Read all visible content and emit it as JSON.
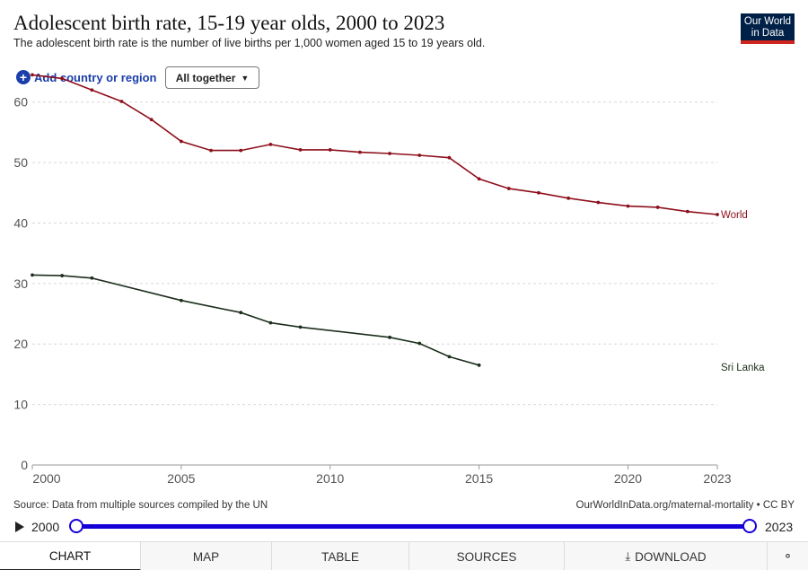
{
  "header": {
    "title": "Adolescent birth rate, 15-19 year olds, 2000 to 2023",
    "subtitle": "The adolescent birth rate is the number of live births per 1,000 women aged 15 to 19 years old."
  },
  "logo": {
    "line1": "Our World",
    "line2": "in Data"
  },
  "controls": {
    "add_label": "Add country or region",
    "dropdown_value": "All together"
  },
  "chart_data": {
    "type": "line",
    "title": "Adolescent birth rate, 15-19 year olds, 2000 to 2023",
    "xlim": [
      2000,
      2023
    ],
    "ylim": [
      0,
      65
    ],
    "x_ticks": [
      "2000",
      "2005",
      "2010",
      "2015",
      "2020",
      "2023"
    ],
    "y_ticks": [
      "0",
      "10",
      "20",
      "30",
      "40",
      "50",
      "60"
    ],
    "grid": true,
    "series": [
      {
        "name": "World",
        "color": "#8e0f1b",
        "x": [
          2000,
          2001,
          2002,
          2003,
          2004,
          2005,
          2006,
          2007,
          2008,
          2009,
          2010,
          2011,
          2012,
          2013,
          2014,
          2015,
          2016,
          2017,
          2018,
          2019,
          2020,
          2021,
          2022,
          2023
        ],
        "values": [
          64.5,
          63.9,
          62,
          60.1,
          57.1,
          53.5,
          52,
          52,
          53,
          52.1,
          52.1,
          51.7,
          51.5,
          51.2,
          50.8,
          47.3,
          45.7,
          45,
          44.1,
          43.4,
          42.8,
          42.6,
          41.9,
          41.4
        ]
      },
      {
        "name": "Sri Lanka",
        "color": "#1c2e1c",
        "x": [
          2000,
          2001,
          2002,
          2005,
          2007,
          2008,
          2009,
          2012,
          2013,
          2014,
          2015
        ],
        "values": [
          31.4,
          31.3,
          30.9,
          27.2,
          25.2,
          23.5,
          22.8,
          21.1,
          20.1,
          17.9,
          16.5
        ]
      }
    ]
  },
  "footer": {
    "source": "Source: Data from multiple sources compiled by the UN",
    "credit": "OurWorldInData.org/maternal-mortality • CC BY"
  },
  "timeline": {
    "start": "2000",
    "end": "2023"
  },
  "tabs": {
    "chart": "CHART",
    "map": "MAP",
    "table": "TABLE",
    "sources": "SOURCES",
    "download": "DOWNLOAD"
  }
}
